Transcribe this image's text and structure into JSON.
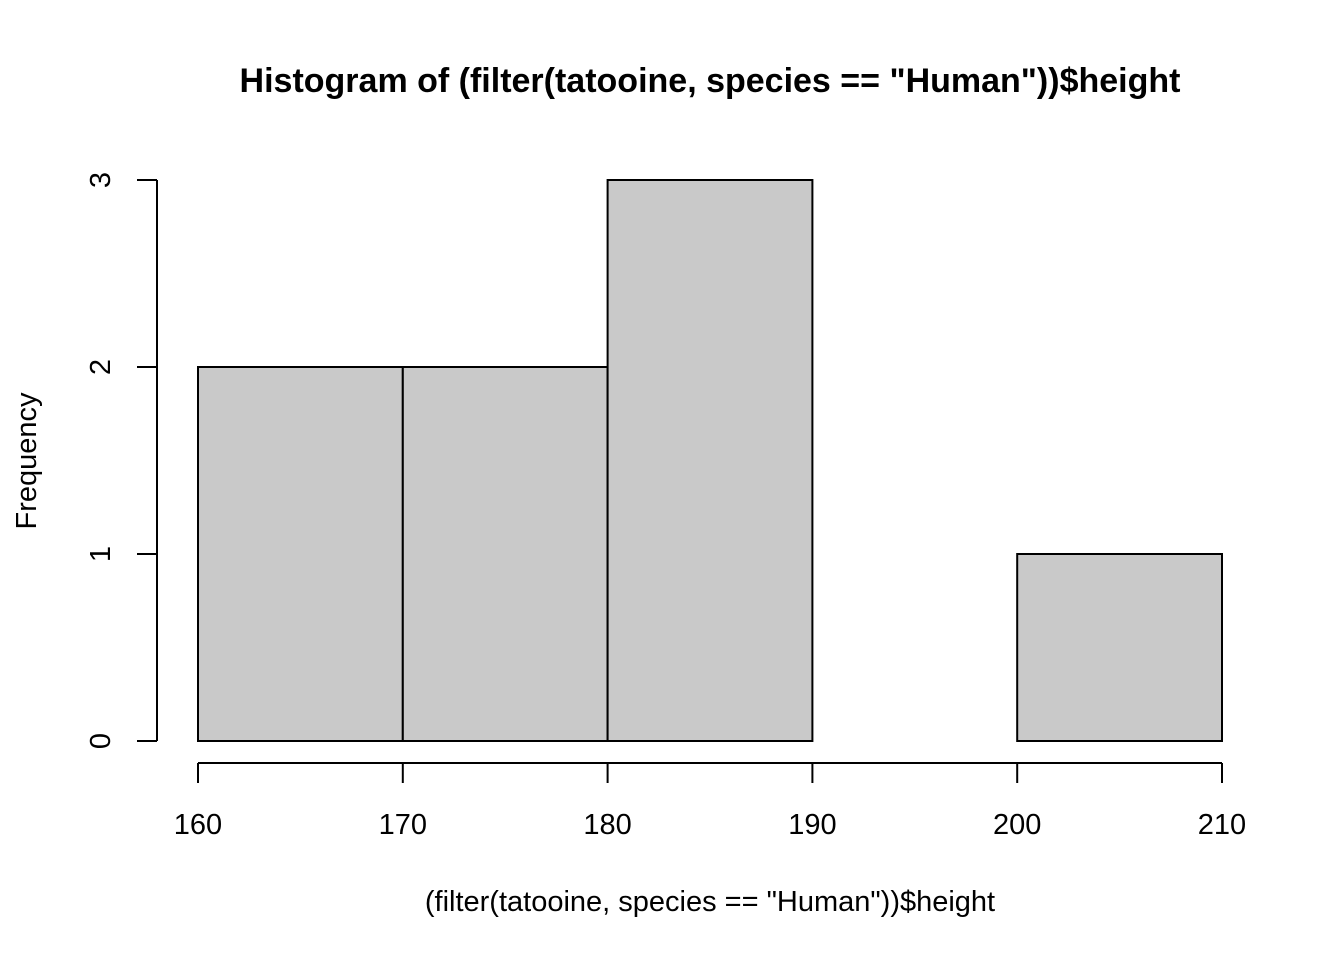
{
  "chart_data": {
    "type": "bar",
    "title": "Histogram of (filter(tatooine, species == \"Human\"))$height",
    "xlabel": "(filter(tatooine, species == \"Human\"))$height",
    "ylabel": "Frequency",
    "bins": [
      {
        "start": 160,
        "end": 170,
        "count": 2
      },
      {
        "start": 170,
        "end": 180,
        "count": 2
      },
      {
        "start": 180,
        "end": 190,
        "count": 3
      },
      {
        "start": 190,
        "end": 200,
        "count": 0
      },
      {
        "start": 200,
        "end": 210,
        "count": 1
      }
    ],
    "xticks": [
      "160",
      "170",
      "180",
      "190",
      "200",
      "210"
    ],
    "yticks": [
      "0",
      "1",
      "2",
      "3"
    ],
    "xlim": [
      160,
      210
    ],
    "ylim": [
      0,
      3
    ],
    "bar_color": "#c9c9c9",
    "grid": false
  }
}
